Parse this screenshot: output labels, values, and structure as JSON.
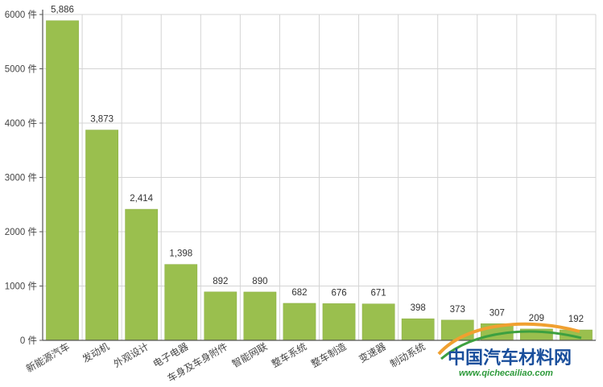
{
  "chart_data": {
    "type": "bar",
    "categories": [
      "新能源汽车",
      "发动机",
      "外观设计",
      "电子电器",
      "车身及车身附件",
      "智能网联",
      "整车系统",
      "整车制造",
      "变速器",
      "制动系统",
      "",
      "",
      "",
      ""
    ],
    "values": [
      5886,
      3873,
      2414,
      1398,
      892,
      890,
      682,
      676,
      671,
      398,
      373,
      307,
      209,
      192
    ],
    "value_labels": [
      "5,886",
      "3,873",
      "2,414",
      "1,398",
      "892",
      "890",
      "682",
      "676",
      "671",
      "398",
      "373",
      "307",
      "209",
      "192"
    ],
    "title": "",
    "xlabel": "",
    "ylabel": "",
    "ylim": [
      0,
      6000
    ],
    "yticks": [
      0,
      1000,
      2000,
      3000,
      4000,
      5000,
      6000
    ],
    "ytick_labels": [
      "0 件",
      "1000 件",
      "2000 件",
      "3000 件",
      "4000 件",
      "5000 件",
      "6000 件"
    ],
    "grid": true,
    "legend": "none"
  },
  "colors": {
    "bar": "#9abf4e",
    "bar_stroke": "#8aad43",
    "grid": "#d4d4d4",
    "axis": "#555555",
    "watermark_orange": "#f0a030",
    "watermark_green": "#3da040"
  },
  "watermark": {
    "text": "中国汽车材料网",
    "url": "www.qichecailiao.com"
  }
}
